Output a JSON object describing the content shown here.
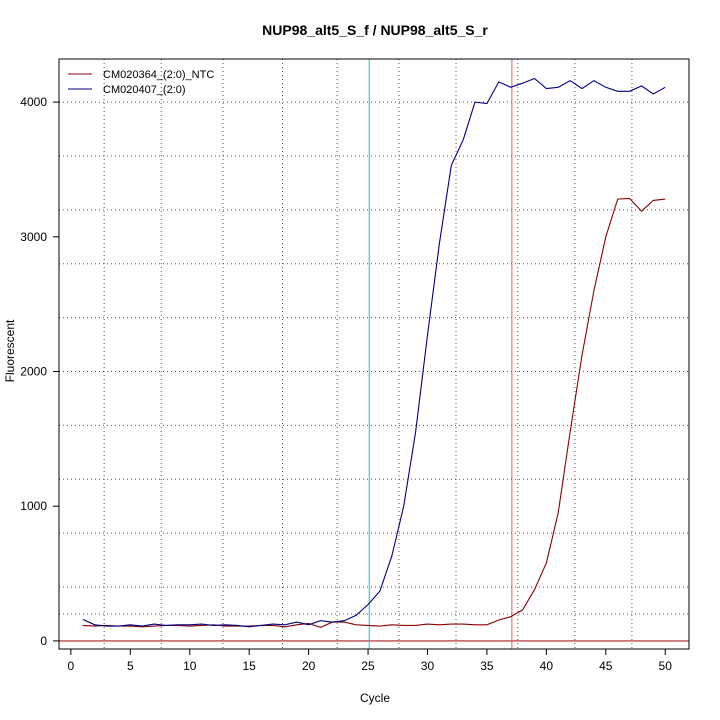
{
  "chart_data": {
    "type": "line",
    "title": "NUP98_alt5_S_f / NUP98_alt5_S_r",
    "xlabel": "Cycle",
    "ylabel": "Fluorescent",
    "xlim": [
      -1,
      52
    ],
    "ylim": [
      -60,
      4320
    ],
    "x_ticks": [
      0,
      5,
      10,
      15,
      20,
      25,
      30,
      35,
      40,
      45,
      50
    ],
    "y_ticks": [
      0,
      1000,
      2000,
      3000,
      4000
    ],
    "grid": "dotted",
    "legend_position": "top-left",
    "vertical_grid_x": [
      2.8,
      7.6,
      12.8,
      17.8,
      22.4,
      27.6,
      32.4,
      37.6,
      42.4,
      47.2
    ],
    "horizontal_grid_y": [
      200,
      400,
      800,
      1200,
      1600,
      2000,
      2400,
      2800,
      3200,
      3600,
      4000
    ],
    "threshold_lines": {
      "horizontal": {
        "y": 0,
        "color": "#b22222"
      },
      "vertical_cyan": {
        "x": 25.1,
        "color": "#00cccc"
      },
      "vertical_red": {
        "x": 37.1,
        "color": "#e06060"
      }
    },
    "series": [
      {
        "name": "CM020364_(2:0)_NTC",
        "color": "#8b0000",
        "x": [
          1,
          2,
          3,
          4,
          5,
          6,
          7,
          8,
          9,
          10,
          11,
          12,
          13,
          14,
          15,
          16,
          17,
          18,
          19,
          20,
          21,
          22,
          23,
          24,
          25,
          26,
          27,
          28,
          29,
          30,
          31,
          32,
          33,
          34,
          35,
          36,
          37,
          38,
          39,
          40,
          41,
          42,
          43,
          44,
          45,
          46,
          47,
          48,
          49,
          50
        ],
        "y": [
          115,
          110,
          115,
          110,
          110,
          105,
          110,
          115,
          115,
          110,
          115,
          120,
          110,
          110,
          110,
          115,
          115,
          105,
          120,
          130,
          100,
          140,
          140,
          120,
          115,
          110,
          120,
          115,
          115,
          125,
          120,
          125,
          125,
          120,
          120,
          155,
          180,
          230,
          380,
          580,
          950,
          1550,
          2120,
          2600,
          3000,
          3280,
          3285,
          3190,
          3270,
          3280
        ]
      },
      {
        "name": "CM020407_(2:0)",
        "color": "#000080",
        "x": [
          1,
          2,
          3,
          4,
          5,
          6,
          7,
          8,
          9,
          10,
          11,
          12,
          13,
          14,
          15,
          16,
          17,
          18,
          19,
          20,
          21,
          22,
          23,
          24,
          25,
          26,
          27,
          28,
          29,
          30,
          31,
          32,
          33,
          34,
          35,
          36,
          37,
          38,
          39,
          40,
          41,
          42,
          43,
          44,
          45,
          46,
          47,
          48,
          49,
          50
        ],
        "y": [
          160,
          120,
          110,
          110,
          120,
          110,
          125,
          115,
          120,
          120,
          125,
          115,
          120,
          115,
          105,
          115,
          125,
          120,
          140,
          120,
          150,
          140,
          150,
          190,
          270,
          370,
          630,
          1000,
          1550,
          2270,
          2950,
          3530,
          3720,
          4000,
          3990,
          4150,
          4110,
          4140,
          4175,
          4100,
          4110,
          4160,
          4100,
          4160,
          4110,
          4080,
          4080,
          4120,
          4060,
          4110
        ]
      }
    ]
  }
}
